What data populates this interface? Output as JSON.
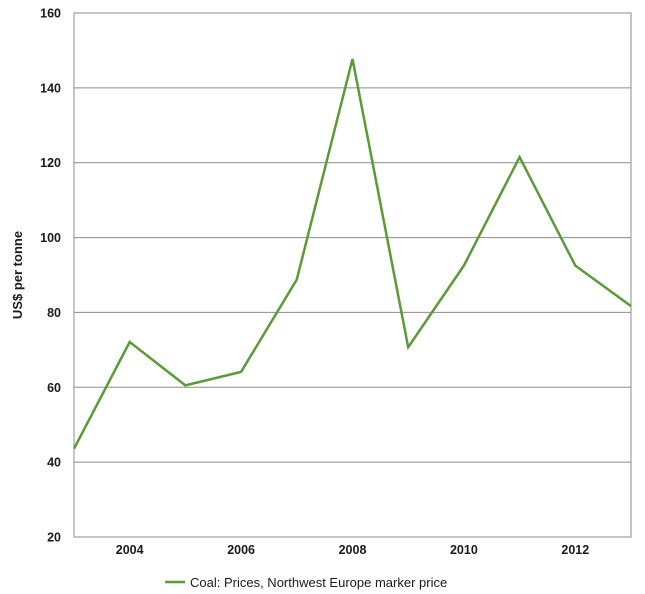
{
  "chart_data": {
    "type": "line",
    "title": "",
    "xlabel": "",
    "ylabel": "US$ per tonne",
    "xlim": [
      2003,
      2013
    ],
    "ylim": [
      20,
      160
    ],
    "x_ticks": [
      2004,
      2006,
      2008,
      2010,
      2012
    ],
    "y_ticks": [
      20,
      40,
      60,
      80,
      100,
      120,
      140,
      160
    ],
    "grid": "horizontal",
    "legend": "bottom-center",
    "series": [
      {
        "name": "Coal: Prices, Northwest Europe marker price",
        "color": "#5b9a35",
        "x": [
          2003,
          2004,
          2005,
          2006,
          2007,
          2008,
          2009,
          2010,
          2011,
          2012,
          2013
        ],
        "values": [
          43.6,
          72.1,
          60.5,
          64.1,
          88.8,
          147.7,
          70.7,
          92.5,
          121.5,
          92.5,
          81.7
        ]
      }
    ]
  }
}
